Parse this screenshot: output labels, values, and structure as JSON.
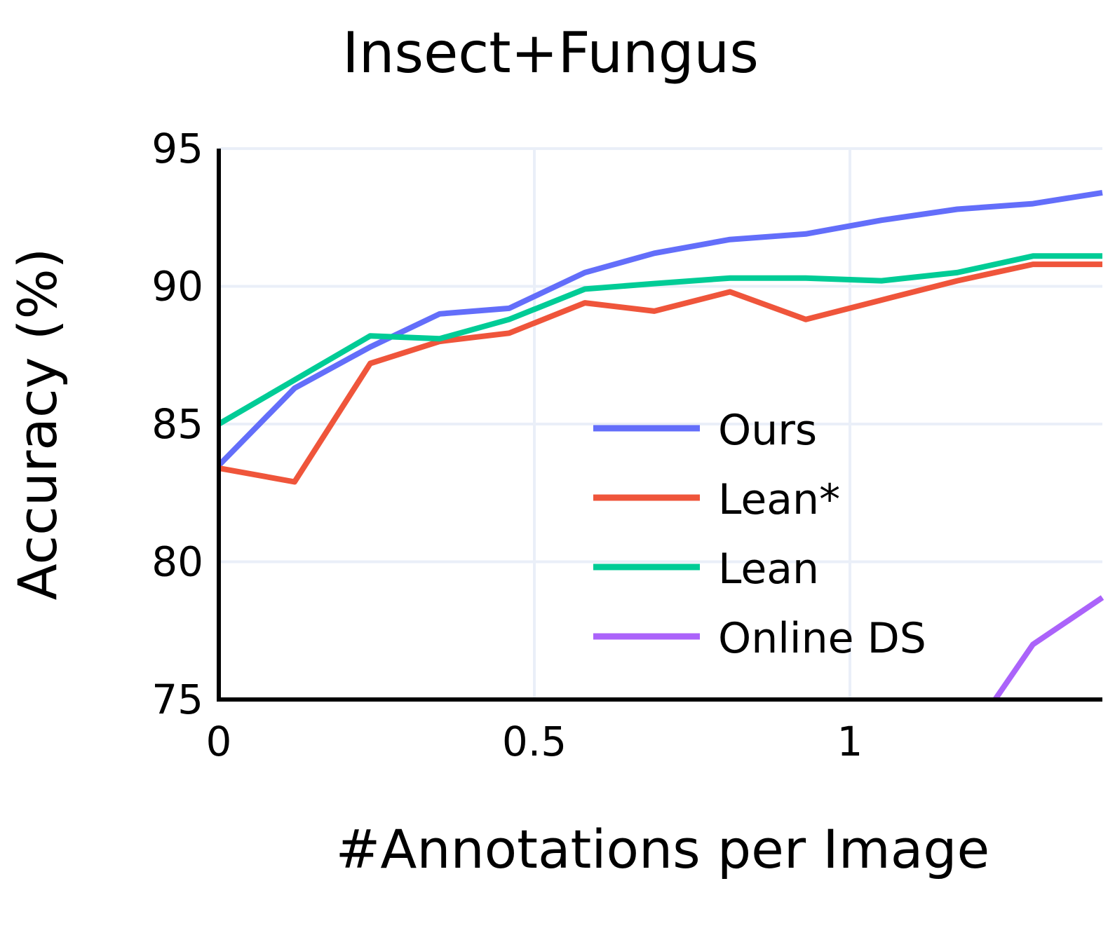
{
  "chart_data": {
    "type": "line",
    "title": "Insect+Fungus",
    "xlabel": "#Annotations per Image",
    "ylabel": "Accuracy (%)",
    "xlim": [
      0,
      1.4
    ],
    "ylim": [
      75,
      95
    ],
    "xticks": [
      0,
      0.5,
      1
    ],
    "xtick_labels": [
      "0",
      "0.5",
      "1"
    ],
    "yticks": [
      75,
      80,
      85,
      90,
      95
    ],
    "ytick_labels": [
      "75",
      "80",
      "85",
      "90",
      "95"
    ],
    "grid": true,
    "legend_position": "lower-center-right",
    "series": [
      {
        "name": "Ours",
        "color": "#636efa",
        "x": [
          0,
          0.12,
          0.24,
          0.35,
          0.46,
          0.58,
          0.69,
          0.81,
          0.93,
          1.05,
          1.17,
          1.29,
          1.4
        ],
        "y": [
          83.5,
          86.3,
          87.8,
          89.0,
          89.2,
          90.5,
          91.2,
          91.7,
          91.9,
          92.4,
          92.8,
          93.0,
          93.4
        ]
      },
      {
        "name": "Lean*",
        "color": "#ef553b",
        "x": [
          0,
          0.12,
          0.24,
          0.35,
          0.46,
          0.58,
          0.69,
          0.81,
          0.93,
          1.05,
          1.17,
          1.29,
          1.4
        ],
        "y": [
          83.4,
          82.9,
          87.2,
          88.0,
          88.3,
          89.4,
          89.1,
          89.8,
          88.8,
          89.5,
          90.2,
          90.8,
          90.8
        ]
      },
      {
        "name": "Lean",
        "color": "#00cc96",
        "x": [
          0,
          0.12,
          0.24,
          0.35,
          0.46,
          0.58,
          0.69,
          0.81,
          0.93,
          1.05,
          1.17,
          1.29,
          1.4
        ],
        "y": [
          85.0,
          86.6,
          88.2,
          88.1,
          88.8,
          89.9,
          90.1,
          90.3,
          90.3,
          90.2,
          90.5,
          91.1,
          91.1
        ]
      },
      {
        "name": "Online DS",
        "color": "#ab63fa",
        "x": [
          1.17,
          1.23,
          1.29,
          1.4
        ],
        "y": [
          72.5,
          75.0,
          77.0,
          78.7
        ]
      }
    ]
  }
}
